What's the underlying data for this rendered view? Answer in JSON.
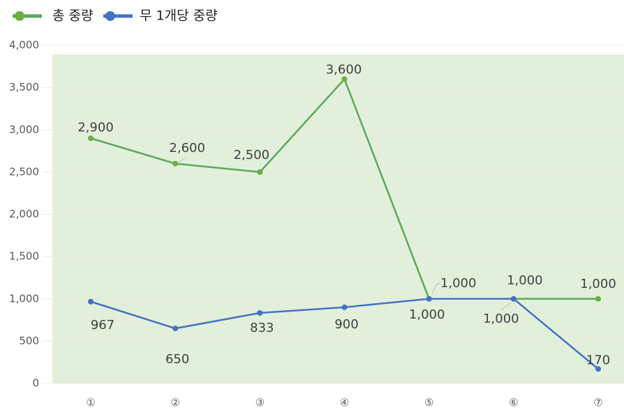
{
  "chart_data": {
    "type": "line",
    "categories": [
      "①",
      "②",
      "③",
      "④",
      "⑤",
      "⑥",
      "⑦"
    ],
    "series": [
      {
        "name": "총 중량",
        "color": "#5aa95a",
        "values": [
          2900,
          2600,
          2500,
          3600,
          1000,
          1000,
          1000
        ],
        "value_labels": [
          "2,900",
          "2,600",
          "2,500",
          "3,600",
          "1,000",
          "1,000",
          "1,000"
        ]
      },
      {
        "name": "무 1개당 중량",
        "color": "#4472c4",
        "values": [
          967,
          650,
          833,
          900,
          1000,
          1000,
          170
        ],
        "value_labels": [
          "967",
          "650",
          "833",
          "900",
          "1,000",
          "1,000",
          "170"
        ]
      }
    ],
    "ylim": [
      0,
      4000
    ],
    "yticks": [
      0,
      500,
      {
        "value": 1000,
        "label": "1,000"
      },
      {
        "value": 1500,
        "label": "1,500"
      },
      {
        "value": 2000,
        "label": "2,000"
      },
      {
        "value": 2500,
        "label": "2,500"
      },
      {
        "value": 3000,
        "label": "3,000"
      },
      {
        "value": 3500,
        "label": "3,500"
      },
      {
        "value": 4000,
        "label": "4,000"
      }
    ],
    "grid": true,
    "legend": "top-left",
    "background": "#e2efda"
  }
}
